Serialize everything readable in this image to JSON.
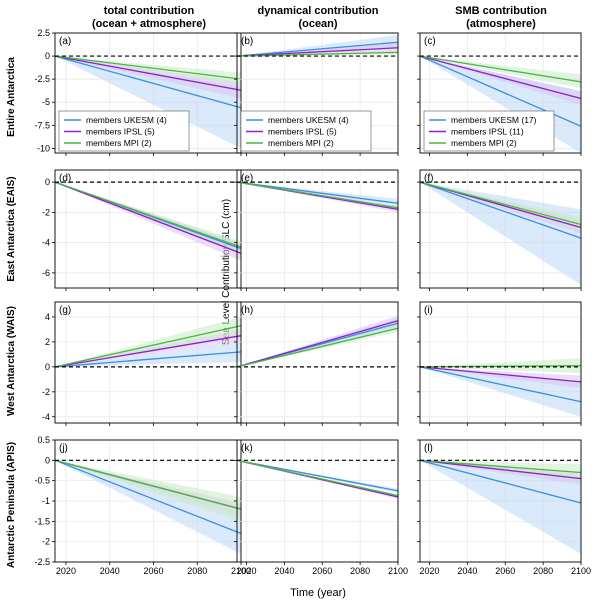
{
  "figure": {
    "column_titles": [
      [
        "total contribution",
        "(ocean + atmosphere)"
      ],
      [
        "dynamical contribution",
        "(ocean)"
      ],
      [
        "SMB contribution",
        "(atmosphere)"
      ]
    ],
    "row_titles": [
      "Entire Antarctica",
      "East Antarctica (EAIS)",
      "West Antarctica (WAIS)",
      "Antarctic Peninsula (APIS)"
    ],
    "y_axis_label": "Sea Level Contribution SLC (cm)",
    "x_axis_label": "Time (year)",
    "x_ticks": [
      "2020",
      "2040",
      "2060",
      "2080",
      "2100"
    ],
    "y_ticks_by_row": [
      [
        "2.5",
        "0",
        "-2.5",
        "-5",
        "-7.5",
        "-10"
      ],
      [
        "0",
        "-2",
        "-4",
        "-6"
      ],
      [
        "4",
        "2",
        "0",
        "-2",
        "-4"
      ],
      [
        "0.5",
        "0",
        "-0.5",
        "-1",
        "-1.5",
        "-2",
        "-2.5"
      ]
    ],
    "colors": {
      "UKESM": "#3b8ee0",
      "UKESM_band": "#bcd9f7",
      "IPSL": "#8f1fc8",
      "IPSL_band": "#dcc3f0",
      "MPI": "#4cb543",
      "MPI_band": "#c9ebc4",
      "zero_line": "#000000",
      "grid": "#e6e6e6"
    }
  },
  "legends": [
    [
      "members UKESM (4)",
      "members IPSL (5)",
      "members MPI (2)"
    ],
    [
      "members UKESM (4)",
      "members IPSL (5)",
      "members MPI (2)"
    ],
    [
      "members UKESM (17)",
      "members IPSL (11)",
      "members MPI (2)"
    ]
  ],
  "chart_data": [
    {
      "type": "line",
      "panel": "(a)",
      "xlim": [
        2015,
        2100
      ],
      "ylim": [
        -10.5,
        2.5
      ],
      "x": [
        2015,
        2100
      ],
      "series": [
        {
          "name": "UKESM",
          "values": [
            0,
            -5.6
          ],
          "band": [
            0,
            -3.3,
            0,
            -10
          ]
        },
        {
          "name": "IPSL",
          "values": [
            0,
            -3.7
          ],
          "band": [
            0,
            -2.8,
            0,
            -4.6
          ]
        },
        {
          "name": "MPI",
          "values": [
            0,
            -2.5
          ],
          "band": [
            0,
            -1.8,
            0,
            -3.2
          ]
        }
      ]
    },
    {
      "type": "line",
      "panel": "(b)",
      "xlim": [
        2015,
        2100
      ],
      "ylim": [
        -10.5,
        2.5
      ],
      "x": [
        2015,
        2100
      ],
      "series": [
        {
          "name": "UKESM",
          "values": [
            0,
            1.5
          ],
          "band": [
            0,
            2.3,
            0,
            0.8
          ]
        },
        {
          "name": "IPSL",
          "values": [
            0,
            0.9
          ],
          "band": [
            0,
            1.4,
            0,
            0.5
          ]
        },
        {
          "name": "MPI",
          "values": [
            0,
            0.4
          ],
          "band": [
            0,
            0.6,
            0,
            0.2
          ]
        }
      ]
    },
    {
      "type": "line",
      "panel": "(c)",
      "xlim": [
        2015,
        2100
      ],
      "ylim": [
        -10.5,
        2.5
      ],
      "x": [
        2015,
        2100
      ],
      "series": [
        {
          "name": "UKESM",
          "values": [
            0,
            -7.6
          ],
          "band": [
            0,
            -3.8,
            0,
            -10.5
          ]
        },
        {
          "name": "IPSL",
          "values": [
            0,
            -4.6
          ],
          "band": [
            0,
            -3.8,
            0,
            -5.3
          ]
        },
        {
          "name": "MPI",
          "values": [
            0,
            -2.8
          ],
          "band": [
            0,
            -2,
            0,
            -3.5
          ]
        }
      ]
    },
    {
      "type": "line",
      "panel": "(d)",
      "xlim": [
        2015,
        2100
      ],
      "ylim": [
        -7,
        0.8
      ],
      "x": [
        2015,
        2100
      ],
      "series": [
        {
          "name": "UKESM",
          "values": [
            0,
            -4.4
          ],
          "band": [
            0,
            -4,
            0,
            -4.8
          ]
        },
        {
          "name": "IPSL",
          "values": [
            0,
            -4.7
          ],
          "band": [
            0,
            -4.1,
            0,
            -5.2
          ]
        },
        {
          "name": "MPI",
          "values": [
            0,
            -4.3
          ],
          "band": [
            0,
            -3.9,
            0,
            -4.6
          ]
        }
      ]
    },
    {
      "type": "line",
      "panel": "(e)",
      "xlim": [
        2015,
        2100
      ],
      "ylim": [
        -7,
        0.8
      ],
      "x": [
        2015,
        2100
      ],
      "series": [
        {
          "name": "UKESM",
          "values": [
            0,
            -1.4
          ],
          "band": [
            0,
            -1.1,
            0,
            -1.7
          ]
        },
        {
          "name": "IPSL",
          "values": [
            0,
            -1.8
          ],
          "band": [
            0,
            -1.6,
            0,
            -2
          ]
        },
        {
          "name": "MPI",
          "values": [
            0,
            -1.7
          ],
          "band": [
            0,
            -1.6,
            0,
            -1.8
          ]
        }
      ]
    },
    {
      "type": "line",
      "panel": "(f)",
      "xlim": [
        2015,
        2100
      ],
      "ylim": [
        -7,
        0.8
      ],
      "x": [
        2015,
        2100
      ],
      "series": [
        {
          "name": "UKESM",
          "values": [
            0,
            -3.7
          ],
          "band": [
            0,
            -1.8,
            0,
            -6.8
          ]
        },
        {
          "name": "IPSL",
          "values": [
            0,
            -3
          ],
          "band": [
            0,
            -2.5,
            0,
            -3.4
          ]
        },
        {
          "name": "MPI",
          "values": [
            0,
            -2.8
          ],
          "band": [
            0,
            -2.3,
            0,
            -3.2
          ]
        }
      ]
    },
    {
      "type": "line",
      "panel": "(g)",
      "xlim": [
        2015,
        2100
      ],
      "ylim": [
        -4.5,
        5.2
      ],
      "x": [
        2015,
        2100
      ],
      "series": [
        {
          "name": "UKESM",
          "values": [
            0,
            1.2
          ],
          "band": [
            0,
            2,
            0,
            0.4
          ]
        },
        {
          "name": "IPSL",
          "values": [
            0,
            2.5
          ],
          "band": [
            0,
            3,
            0,
            2
          ]
        },
        {
          "name": "MPI",
          "values": [
            0,
            3.3
          ],
          "band": [
            0,
            4,
            0,
            2.6
          ]
        }
      ]
    },
    {
      "type": "line",
      "panel": "(h)",
      "xlim": [
        2015,
        2100
      ],
      "ylim": [
        -4.5,
        5.2
      ],
      "x": [
        2015,
        2100
      ],
      "series": [
        {
          "name": "UKESM",
          "values": [
            0,
            3.5
          ],
          "band": [
            0,
            3.9,
            0,
            3.1
          ]
        },
        {
          "name": "IPSL",
          "values": [
            0,
            3.7
          ],
          "band": [
            0,
            4.1,
            0,
            3.3
          ]
        },
        {
          "name": "MPI",
          "values": [
            0,
            3.1
          ],
          "band": [
            0,
            3.4,
            0,
            2.8
          ]
        }
      ]
    },
    {
      "type": "line",
      "panel": "(i)",
      "xlim": [
        2015,
        2100
      ],
      "ylim": [
        -4.5,
        5.2
      ],
      "x": [
        2015,
        2100
      ],
      "series": [
        {
          "name": "UKESM",
          "values": [
            0,
            -2.8
          ],
          "band": [
            0,
            -1.2,
            0,
            -4
          ]
        },
        {
          "name": "IPSL",
          "values": [
            0,
            -1.2
          ],
          "band": [
            0,
            -0.7,
            0,
            -1.7
          ]
        },
        {
          "name": "MPI",
          "values": [
            0,
            0.1
          ],
          "band": [
            0,
            0.7,
            0,
            -0.5
          ]
        }
      ]
    },
    {
      "type": "line",
      "panel": "(j)",
      "xlim": [
        2015,
        2100
      ],
      "ylim": [
        -2.5,
        0.5
      ],
      "x": [
        2015,
        2100
      ],
      "series": [
        {
          "name": "UKESM",
          "values": [
            0,
            -1.8
          ],
          "band": [
            0,
            -1.3,
            0,
            -2.3
          ]
        },
        {
          "name": "IPSL",
          "values": [
            0,
            -1.2
          ],
          "band": [
            0,
            -1.05,
            0,
            -1.35
          ]
        },
        {
          "name": "MPI",
          "values": [
            0,
            -1.2
          ],
          "band": [
            0,
            -0.9,
            0,
            -1.5
          ]
        }
      ]
    },
    {
      "type": "line",
      "panel": "(k)",
      "xlim": [
        2015,
        2100
      ],
      "ylim": [
        -2.5,
        0.5
      ],
      "x": [
        2015,
        2100
      ],
      "series": [
        {
          "name": "UKESM",
          "values": [
            0,
            -0.75
          ],
          "band": [
            0,
            -0.7,
            0,
            -0.8
          ]
        },
        {
          "name": "IPSL",
          "values": [
            0,
            -0.9
          ],
          "band": [
            0,
            -0.85,
            0,
            -0.95
          ]
        },
        {
          "name": "MPI",
          "values": [
            0,
            -0.87
          ],
          "band": [
            0,
            -0.83,
            0,
            -0.91
          ]
        }
      ]
    },
    {
      "type": "line",
      "panel": "(l)",
      "xlim": [
        2015,
        2100
      ],
      "ylim": [
        -2.5,
        0.5
      ],
      "x": [
        2015,
        2100
      ],
      "series": [
        {
          "name": "UKESM",
          "values": [
            0,
            -1.05
          ],
          "band": [
            0,
            -0.4,
            0,
            -2.3
          ]
        },
        {
          "name": "IPSL",
          "values": [
            0,
            -0.45
          ],
          "band": [
            0,
            -0.3,
            0,
            -0.6
          ]
        },
        {
          "name": "MPI",
          "values": [
            0,
            -0.3
          ],
          "band": [
            0,
            -0.1,
            0,
            -0.5
          ]
        }
      ]
    }
  ]
}
